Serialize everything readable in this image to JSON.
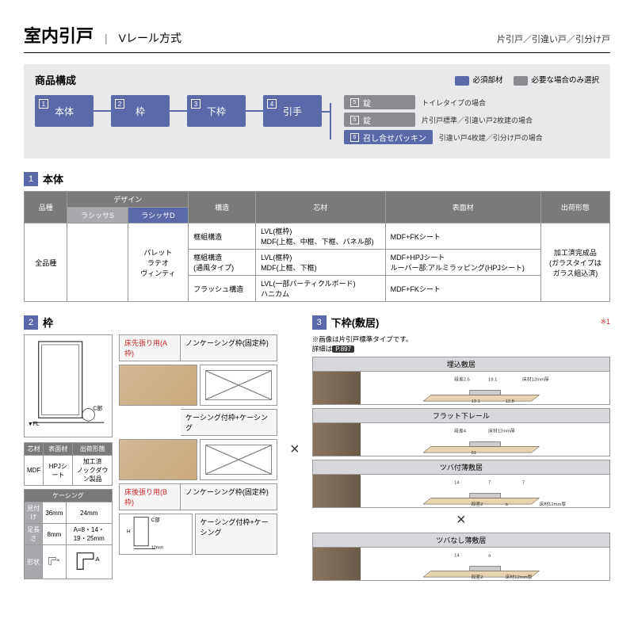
{
  "colors": {
    "primary": "#5a6aa8",
    "gray": "#8a8a8f",
    "panel": "#e9e9eb",
    "th": "#7a7a7a",
    "thsub": "#a8a8ad"
  },
  "header": {
    "title": "室内引戸",
    "subtitle": "Vレール方式",
    "right": "片引戸／引違い戸／引分け戸",
    "divider": "|"
  },
  "flow": {
    "label": "商品構成",
    "legend": [
      {
        "color": "#5a6aa8",
        "text": "必須部材"
      },
      {
        "color": "#8a8a8f",
        "text": "必要な場合のみ選択"
      }
    ],
    "boxes": [
      {
        "num": "1",
        "label": "本体"
      },
      {
        "num": "2",
        "label": "枠"
      },
      {
        "num": "3",
        "label": "下枠"
      },
      {
        "num": "4",
        "label": "引手"
      }
    ],
    "options": [
      {
        "num": "5",
        "label": "錠",
        "color": "#8a8a8f",
        "note": "トイレタイプの場合"
      },
      {
        "num": "5",
        "label": "錠",
        "color": "#8a8a8f",
        "note": "片引戸標準／引違い戸2枚建の場合"
      },
      {
        "num": "6",
        "label": "召し合せパッキン",
        "color": "#5a6aa8",
        "note": "引違い戸4枚建／引分け戸の場合"
      }
    ]
  },
  "sec1": {
    "num": "1",
    "title": "本体",
    "headers": {
      "hinshu": "品種",
      "design": "デザイン",
      "kouzou": "構造",
      "shinzai": "芯材",
      "hyoumen": "表面材",
      "shukka": "出荷形態",
      "ls": "ラシッサS",
      "ld": "ラシッサD"
    },
    "rows": {
      "hinshu": "全品種",
      "designs": "パレット\nラテオ\nヴィンティ",
      "r1": {
        "kouzou": "框組構造",
        "shin": "LVL(框枠)\nMDF(上框、中框、下框、パネル部)",
        "hyou": "MDF+FKシート"
      },
      "r2": {
        "kouzou": "框組構造\n(通風タイプ)",
        "shin": "LVL(框枠)\nMDF(上框、下框)",
        "hyou": "MDF+HPJシート\nルーバー部:アルミラッピング(HPJシート)"
      },
      "r3": {
        "kouzou": "フラッシュ構造",
        "shin": "LVL(一部パーティクルボード)\nハニカム",
        "hyou": "MDF+FKシート"
      },
      "shukka": "加工済完成品\n(ガラスタイプは\nガラス組込済)"
    }
  },
  "sec2": {
    "num": "2",
    "title": "枠",
    "fl": "▼FL",
    "cpart": "C部",
    "tbl_mat": {
      "h": [
        "芯材",
        "表面材",
        "出荷形態"
      ],
      "r": [
        "MDF",
        "HPJシート",
        "加工済\nノックダウン製品"
      ]
    },
    "tbl_case": {
      "h": "ケーシング",
      "rows": [
        {
          "l": "見付け",
          "v1": "36mm",
          "v2": "24mm"
        },
        {
          "l": "足長さ",
          "v1": "8mm",
          "v2": "A=8・14・19・25mm"
        }
      ],
      "shape": "形状"
    },
    "typeA": {
      "label": "床先張り用(A枠)",
      "opt1": "ノンケーシング枠(固定枠)",
      "opt2": "ケーシング付枠+ケーシング"
    },
    "typeB": {
      "label": "床後張り用(B枠)",
      "opt1": "ノンケーシング枠(固定枠)",
      "opt2": "ケーシング付枠+ケーシング",
      "h": "H",
      "dim": "12mm",
      "cpart": "C部"
    }
  },
  "sec3": {
    "num": "3",
    "title": "下枠(敷居)",
    "ref": "※1",
    "note1": "※画像は片引戸標準タイプです。",
    "note2_pre": "詳細は",
    "note2_btn": "P.897",
    "items": [
      {
        "label": "埋込敷居",
        "dims": [
          "段差2.5",
          "19.1",
          "19.1",
          "12.8",
          "床材12mm厚"
        ]
      },
      {
        "label": "フラット下レール",
        "dims": [
          "段差4",
          "51",
          "床材12mm厚"
        ]
      },
      {
        "label": "ツバ付薄敷居",
        "dims": [
          "14",
          "段差2",
          "7",
          "a",
          "7",
          "床材12mm厚"
        ]
      },
      {
        "label": "ツバなし薄敷居",
        "dims": [
          "14",
          "段差2",
          "a",
          "床材12mm厚"
        ]
      }
    ]
  }
}
